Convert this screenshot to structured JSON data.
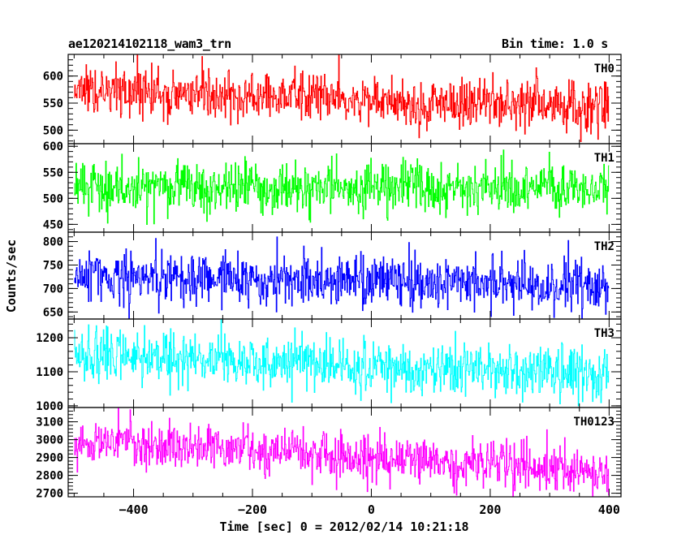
{
  "header": {
    "title": "ae120214102118_wam3_trn",
    "bin_time": "Bin time: 1.0 s"
  },
  "chart_data": {
    "type": "line",
    "xlabel": "Time [sec] 0 = 2012/02/14 10:21:18",
    "ylabel": "Counts/sec",
    "xlim": [
      -510,
      420
    ],
    "x_ticks": [
      -400,
      -200,
      0,
      200,
      400
    ],
    "x_tick_labels": [
      "−400",
      "−200",
      "0",
      "200",
      "400"
    ],
    "x_range_data": [
      -500,
      400
    ],
    "bin_seconds": 1.0,
    "grid": false,
    "panels": [
      {
        "name": "TH0",
        "color": "#ff0000",
        "ylim": [
          475,
          640
        ],
        "y_ticks": [
          500,
          550,
          600
        ],
        "y_tick_labels": [
          "500",
          "550",
          "600"
        ],
        "start_mean": 572,
        "end_mean": 540,
        "noise": 24
      },
      {
        "name": "TH1",
        "color": "#00ff00",
        "ylim": [
          435,
          605
        ],
        "y_ticks": [
          450,
          500,
          550,
          600
        ],
        "y_tick_labels": [
          "450",
          "500",
          "550",
          "600"
        ],
        "start_mean": 523,
        "end_mean": 518,
        "noise": 24
      },
      {
        "name": "TH2",
        "color": "#0000ff",
        "ylim": [
          635,
          820
        ],
        "y_ticks": [
          650,
          700,
          750,
          800
        ],
        "y_tick_labels": [
          "650",
          "700",
          "750",
          "800"
        ],
        "start_mean": 730,
        "end_mean": 705,
        "noise": 27
      },
      {
        "name": "TH3",
        "color": "#00ffff",
        "ylim": [
          995,
          1255
        ],
        "y_ticks": [
          1000,
          1100,
          1200
        ],
        "y_tick_labels": [
          "1000",
          "1100",
          "1200"
        ],
        "start_mean": 1150,
        "end_mean": 1090,
        "noise": 38
      },
      {
        "name": "TH0123",
        "color": "#ff00ff",
        "ylim": [
          2680,
          3180
        ],
        "y_ticks": [
          2700,
          2800,
          2900,
          3000,
          3100
        ],
        "y_tick_labels": [
          "2700",
          "2800",
          "2900",
          "3000",
          "3100"
        ],
        "start_mean": 2990,
        "end_mean": 2830,
        "noise": 62
      }
    ]
  }
}
